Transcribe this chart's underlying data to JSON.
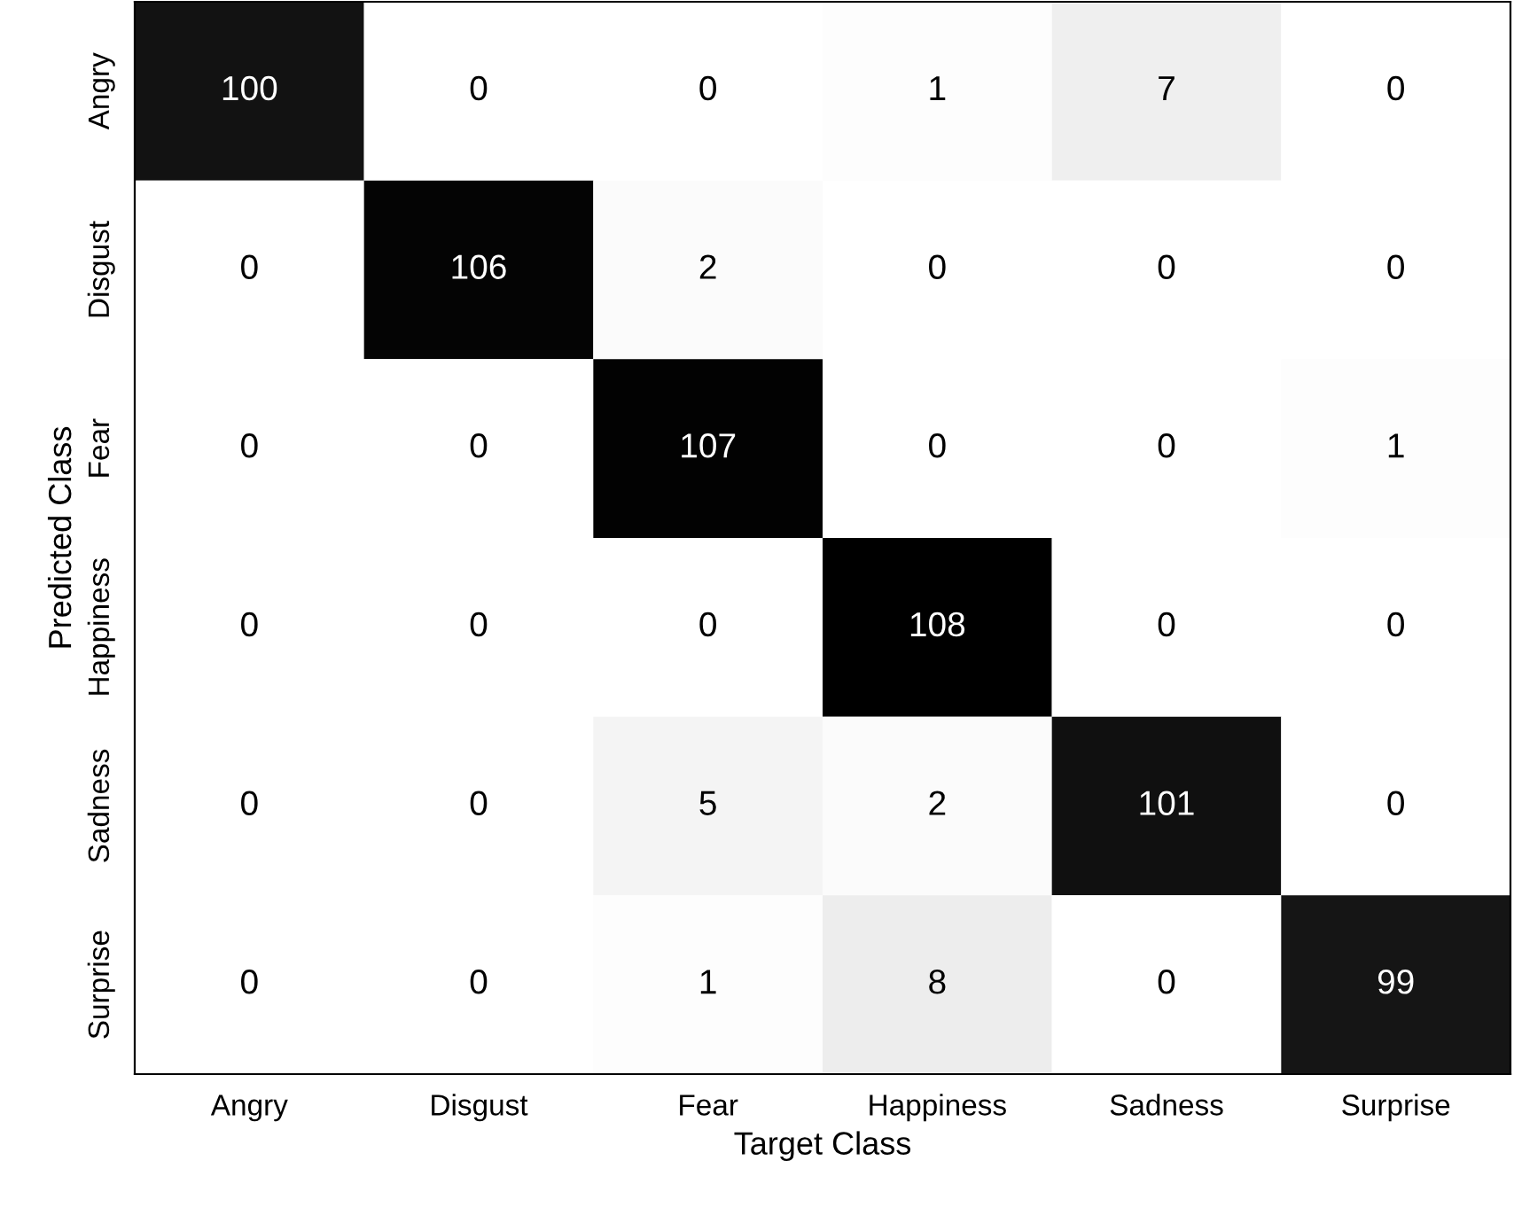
{
  "chart_data": {
    "type": "heatmap",
    "xlabel": "Target Class",
    "ylabel": "Predicted Class",
    "categories": [
      "Angry",
      "Disgust",
      "Fear",
      "Happiness",
      "Sadness",
      "Surprise"
    ],
    "y_categories": [
      "Angry",
      "Disgust",
      "Fear",
      "Happiness",
      "Sadness",
      "Surprise"
    ],
    "cells": [
      [
        100,
        0,
        0,
        1,
        7,
        0
      ],
      [
        0,
        106,
        2,
        0,
        0,
        0
      ],
      [
        0,
        0,
        107,
        0,
        0,
        1
      ],
      [
        0,
        0,
        0,
        108,
        0,
        0
      ],
      [
        0,
        0,
        5,
        2,
        101,
        0
      ],
      [
        0,
        0,
        1,
        8,
        0,
        99
      ]
    ],
    "data_labels": true
  }
}
